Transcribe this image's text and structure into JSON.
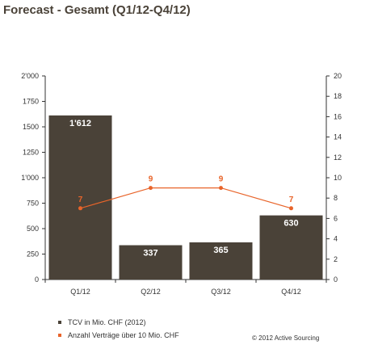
{
  "chart_data": {
    "type": "bar",
    "title": "Forecast - Gesamt (Q1/12-Q4/12)",
    "categories": [
      "Q1/12",
      "Q2/12",
      "Q3/12",
      "Q4/12"
    ],
    "series": [
      {
        "name": "TCV in Mio. CHF (2012)",
        "type": "bar",
        "axis": "left",
        "color": "#4a4238",
        "values": [
          1612,
          337,
          365,
          630
        ],
        "labels": [
          "1'612",
          "337",
          "365",
          "630"
        ]
      },
      {
        "name": "Anzahl Verträge über 10 Mio. CHF",
        "type": "line",
        "axis": "right",
        "color": "#e8642a",
        "values": [
          7,
          9,
          9,
          7
        ],
        "labels": [
          "7",
          "9",
          "9",
          "7"
        ]
      }
    ],
    "y_left": {
      "ylim": [
        0,
        2000
      ],
      "ticks": [
        0,
        250,
        500,
        750,
        1000,
        1250,
        1500,
        1750,
        2000
      ],
      "tick_labels": [
        "0",
        "250",
        "500",
        "750",
        "1'000",
        "1250",
        "1500",
        "1750",
        "2'000"
      ]
    },
    "y_right": {
      "ylim": [
        0,
        20
      ],
      "ticks": [
        0,
        2,
        4,
        6,
        8,
        10,
        12,
        14,
        16,
        18,
        20
      ],
      "tick_labels": [
        "0",
        "2",
        "4",
        "6",
        "8",
        "10",
        "12",
        "14",
        "16",
        "18",
        "20"
      ]
    },
    "grid": false,
    "legend_position": "bottom-left",
    "footer": "© 2012 Active Sourcing"
  }
}
